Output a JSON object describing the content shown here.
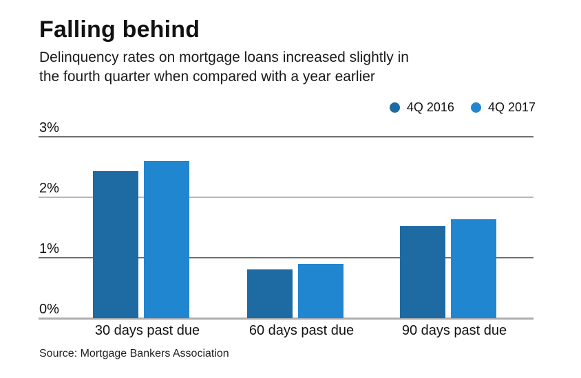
{
  "header": {
    "title": "Falling behind",
    "subtitle_line1": "Delinquency rates on mortgage loans increased slightly in",
    "subtitle_line2": "the fourth quarter when compared with a year earlier"
  },
  "legend": [
    {
      "label": "4Q 2016",
      "color": "#1e6ba3"
    },
    {
      "label": "4Q 2017",
      "color": "#2186d0"
    }
  ],
  "chart_data": {
    "type": "bar",
    "categories": [
      "30 days past due",
      "60 days past due",
      "90 days past due"
    ],
    "series": [
      {
        "name": "4Q 2016",
        "color": "#1e6ba3",
        "values": [
          2.43,
          0.81,
          1.52
        ]
      },
      {
        "name": "4Q 2017",
        "color": "#2186d0",
        "values": [
          2.6,
          0.9,
          1.64
        ]
      }
    ],
    "title": "Falling behind",
    "xlabel": "",
    "ylabel": "",
    "ylim": [
      0,
      3
    ],
    "ytick_labels": [
      "3%",
      "2%",
      "1%",
      "0%"
    ],
    "grid": true,
    "legend_position": "top-right"
  },
  "source": "Source: Mortgage Bankers Association"
}
